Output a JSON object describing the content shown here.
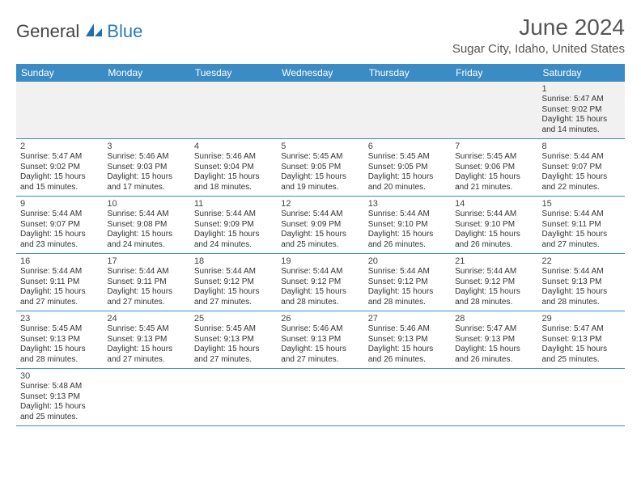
{
  "brand": {
    "part1": "General",
    "part2": "Blue",
    "icon_color": "#1f6fb0"
  },
  "title": "June 2024",
  "location": "Sugar City, Idaho, United States",
  "colors": {
    "header_bg": "#3b8bc4",
    "header_text": "#ffffff",
    "border": "#3b8bc4",
    "first_row_bg": "#f1f1f1",
    "text": "#333333",
    "title_text": "#555555"
  },
  "weekdays": [
    "Sunday",
    "Monday",
    "Tuesday",
    "Wednesday",
    "Thursday",
    "Friday",
    "Saturday"
  ],
  "rows": [
    [
      null,
      null,
      null,
      null,
      null,
      null,
      {
        "n": "1",
        "sr": "5:47 AM",
        "ss": "9:02 PM",
        "dl": "15 hours and 14 minutes."
      }
    ],
    [
      {
        "n": "2",
        "sr": "5:47 AM",
        "ss": "9:02 PM",
        "dl": "15 hours and 15 minutes."
      },
      {
        "n": "3",
        "sr": "5:46 AM",
        "ss": "9:03 PM",
        "dl": "15 hours and 17 minutes."
      },
      {
        "n": "4",
        "sr": "5:46 AM",
        "ss": "9:04 PM",
        "dl": "15 hours and 18 minutes."
      },
      {
        "n": "5",
        "sr": "5:45 AM",
        "ss": "9:05 PM",
        "dl": "15 hours and 19 minutes."
      },
      {
        "n": "6",
        "sr": "5:45 AM",
        "ss": "9:05 PM",
        "dl": "15 hours and 20 minutes."
      },
      {
        "n": "7",
        "sr": "5:45 AM",
        "ss": "9:06 PM",
        "dl": "15 hours and 21 minutes."
      },
      {
        "n": "8",
        "sr": "5:44 AM",
        "ss": "9:07 PM",
        "dl": "15 hours and 22 minutes."
      }
    ],
    [
      {
        "n": "9",
        "sr": "5:44 AM",
        "ss": "9:07 PM",
        "dl": "15 hours and 23 minutes."
      },
      {
        "n": "10",
        "sr": "5:44 AM",
        "ss": "9:08 PM",
        "dl": "15 hours and 24 minutes."
      },
      {
        "n": "11",
        "sr": "5:44 AM",
        "ss": "9:09 PM",
        "dl": "15 hours and 24 minutes."
      },
      {
        "n": "12",
        "sr": "5:44 AM",
        "ss": "9:09 PM",
        "dl": "15 hours and 25 minutes."
      },
      {
        "n": "13",
        "sr": "5:44 AM",
        "ss": "9:10 PM",
        "dl": "15 hours and 26 minutes."
      },
      {
        "n": "14",
        "sr": "5:44 AM",
        "ss": "9:10 PM",
        "dl": "15 hours and 26 minutes."
      },
      {
        "n": "15",
        "sr": "5:44 AM",
        "ss": "9:11 PM",
        "dl": "15 hours and 27 minutes."
      }
    ],
    [
      {
        "n": "16",
        "sr": "5:44 AM",
        "ss": "9:11 PM",
        "dl": "15 hours and 27 minutes."
      },
      {
        "n": "17",
        "sr": "5:44 AM",
        "ss": "9:11 PM",
        "dl": "15 hours and 27 minutes."
      },
      {
        "n": "18",
        "sr": "5:44 AM",
        "ss": "9:12 PM",
        "dl": "15 hours and 27 minutes."
      },
      {
        "n": "19",
        "sr": "5:44 AM",
        "ss": "9:12 PM",
        "dl": "15 hours and 28 minutes."
      },
      {
        "n": "20",
        "sr": "5:44 AM",
        "ss": "9:12 PM",
        "dl": "15 hours and 28 minutes."
      },
      {
        "n": "21",
        "sr": "5:44 AM",
        "ss": "9:12 PM",
        "dl": "15 hours and 28 minutes."
      },
      {
        "n": "22",
        "sr": "5:44 AM",
        "ss": "9:13 PM",
        "dl": "15 hours and 28 minutes."
      }
    ],
    [
      {
        "n": "23",
        "sr": "5:45 AM",
        "ss": "9:13 PM",
        "dl": "15 hours and 28 minutes."
      },
      {
        "n": "24",
        "sr": "5:45 AM",
        "ss": "9:13 PM",
        "dl": "15 hours and 27 minutes."
      },
      {
        "n": "25",
        "sr": "5:45 AM",
        "ss": "9:13 PM",
        "dl": "15 hours and 27 minutes."
      },
      {
        "n": "26",
        "sr": "5:46 AM",
        "ss": "9:13 PM",
        "dl": "15 hours and 27 minutes."
      },
      {
        "n": "27",
        "sr": "5:46 AM",
        "ss": "9:13 PM",
        "dl": "15 hours and 26 minutes."
      },
      {
        "n": "28",
        "sr": "5:47 AM",
        "ss": "9:13 PM",
        "dl": "15 hours and 26 minutes."
      },
      {
        "n": "29",
        "sr": "5:47 AM",
        "ss": "9:13 PM",
        "dl": "15 hours and 25 minutes."
      }
    ],
    [
      {
        "n": "30",
        "sr": "5:48 AM",
        "ss": "9:13 PM",
        "dl": "15 hours and 25 minutes."
      },
      null,
      null,
      null,
      null,
      null,
      null
    ]
  ],
  "labels": {
    "sunrise": "Sunrise:",
    "sunset": "Sunset:",
    "daylight": "Daylight:"
  }
}
